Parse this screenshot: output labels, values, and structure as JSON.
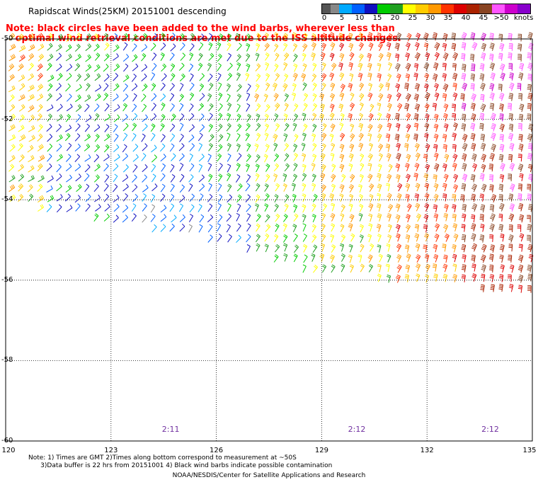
{
  "title": "Rapidscat Winds(25KM) 20151001 descending",
  "note": {
    "line1": "Note: black circles have been added to the wind barbs, wherever less than",
    "line2": "optimal wind retrieval conditions are met due to the ISS altitude changes."
  },
  "legend": {
    "colors": [
      "#555555",
      "#888888",
      "#00aaff",
      "#0060ff",
      "#1010c0",
      "#00cc00",
      "#20a020",
      "#ffff00",
      "#ffcc00",
      "#ff9900",
      "#ff3300",
      "#dd0000",
      "#aa2200",
      "#884422",
      "#ff55ff",
      "#cc00cc",
      "#8800cc"
    ],
    "labels": [
      "0",
      "5",
      "10",
      "15",
      "20",
      "25",
      "30",
      "35",
      "40",
      "45",
      ">50"
    ],
    "unit": "knots"
  },
  "axes": {
    "lat_labels": [
      "-50",
      "-52",
      "-54",
      "-56",
      "-58",
      "-60"
    ],
    "lon_labels": [
      "120",
      "123",
      "126",
      "129",
      "132",
      "135"
    ],
    "lat_range": [
      -60,
      -50
    ],
    "lon_range": [
      120,
      135
    ],
    "grid": true
  },
  "time_labels": [
    {
      "lon": 124.7,
      "text": "2:11"
    },
    {
      "lon": 130.0,
      "text": "2:12"
    },
    {
      "lon": 133.8,
      "text": "2:12"
    }
  ],
  "footnote": {
    "line1": "Note: 1) Times are GMT 2)Times along bottom correspond to measurement at ~50S",
    "line2": "3)Data buffer is 22 hrs from 20151001 4) Black wind barbs indicate possible contamination"
  },
  "credit": "NOAA/NESDIS/Center for Satellite Applications and Research",
  "wind_field": {
    "swath_lat_south_edge_at_lon": [
      [
        120,
        -54.2
      ],
      [
        126,
        -55.1
      ],
      [
        129,
        -56.0
      ],
      [
        132,
        -56.1
      ],
      [
        135,
        -56.5
      ]
    ],
    "speed_regions_knots": [
      {
        "lon_min": 120,
        "lon_max": 121,
        "speed": 25
      },
      {
        "lon_min": 121,
        "lon_max": 123,
        "speed": 15
      },
      {
        "lon_min": 123,
        "lon_max": 125.5,
        "speed": 12
      },
      {
        "lon_min": 125.5,
        "lon_max": 127,
        "speed": 16
      },
      {
        "lon_min": 127,
        "lon_max": 129,
        "speed": 22
      },
      {
        "lon_min": 129,
        "lon_max": 131,
        "speed": 27
      },
      {
        "lon_min": 131,
        "lon_max": 133,
        "speed": 33
      },
      {
        "lon_min": 133,
        "lon_max": 135,
        "speed": 40
      }
    ]
  }
}
